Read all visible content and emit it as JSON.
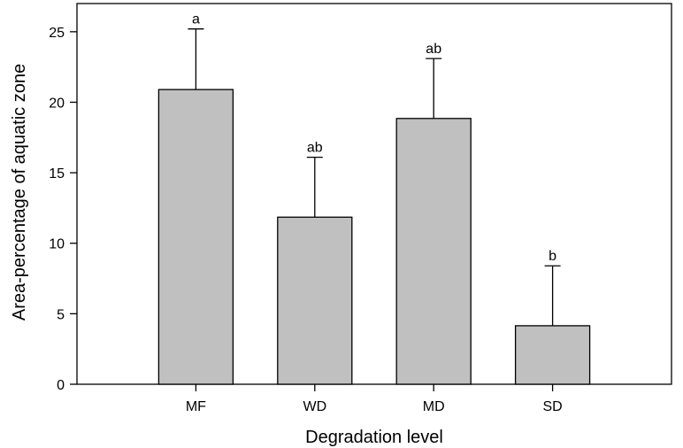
{
  "chart_data": {
    "type": "bar",
    "categories": [
      "MF",
      "WD",
      "MD",
      "SD"
    ],
    "values": [
      20.9,
      11.85,
      18.85,
      4.15
    ],
    "error_upper": [
      25.2,
      16.1,
      23.1,
      8.4
    ],
    "significance_labels": [
      "a",
      "ab",
      "ab",
      "b"
    ],
    "title": "",
    "xlabel": "Degradation level",
    "ylabel": "Area-percentage of aquatic zone",
    "ylim": [
      0,
      27
    ],
    "yticks": [
      0,
      5,
      10,
      15,
      20,
      25
    ],
    "ytick_labels": [
      "0",
      "5",
      "10",
      "15",
      "20",
      "25"
    ],
    "grid": false,
    "legend": "none",
    "colors": {
      "bar_fill": "#c0c0c0",
      "bar_stroke": "#000000",
      "axis": "#000000"
    }
  }
}
